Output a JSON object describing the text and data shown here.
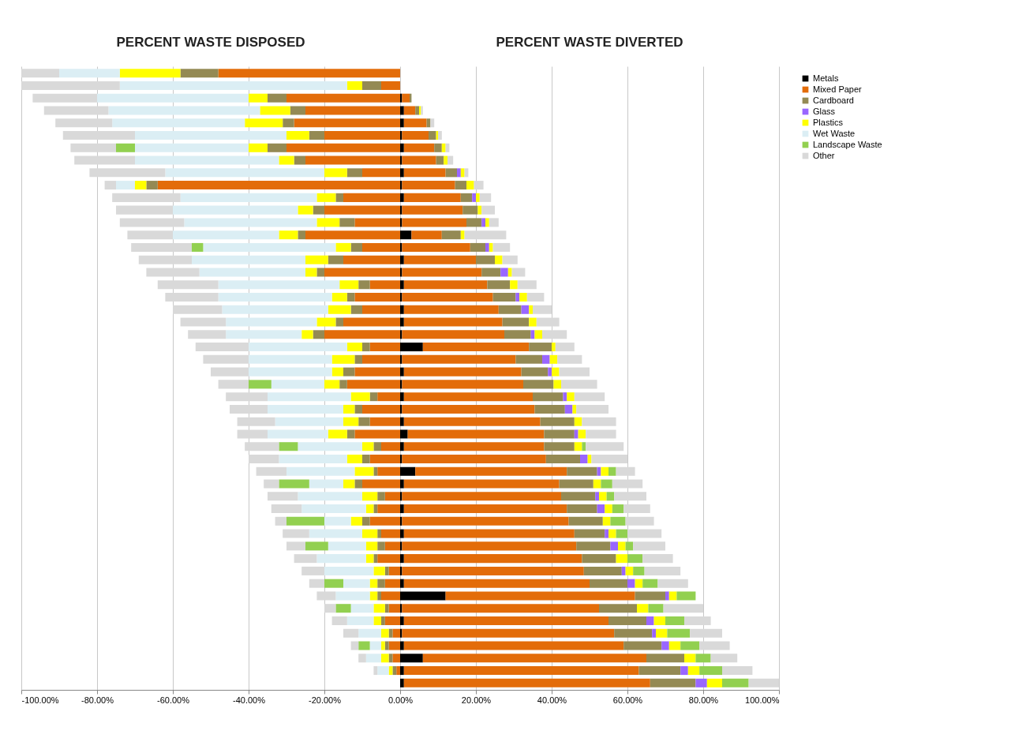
{
  "chart_data": {
    "type": "bar",
    "orientation": "horizontal",
    "stacked": true,
    "annotations": [
      "PERCENT WASTE DISPOSED",
      "PERCENT WASTE DIVERTED"
    ],
    "categories": [
      null,
      null,
      null,
      null,
      null,
      null,
      null,
      null,
      null,
      null,
      null,
      null,
      null,
      null,
      null,
      null,
      null,
      null,
      null,
      null,
      null,
      null,
      null,
      null,
      null,
      null,
      null,
      null,
      null,
      null,
      null,
      null,
      null,
      null,
      null,
      null,
      null,
      null,
      null,
      null,
      null,
      null,
      null,
      null,
      null,
      null,
      null,
      null,
      null,
      null
    ],
    "xlim": [
      -100,
      100
    ],
    "xticks": [
      {
        "value": -100,
        "label": "-100.00%"
      },
      {
        "value": -80,
        "label": "-80.00%"
      },
      {
        "value": -60,
        "label": "-60.00%"
      },
      {
        "value": -40,
        "label": "-40.00%"
      },
      {
        "value": -20,
        "label": "-20.00%"
      },
      {
        "value": 0,
        "label": "0.00%"
      },
      {
        "value": 20,
        "label": "20.00%"
      },
      {
        "value": 40,
        "label": "40.00%"
      },
      {
        "value": 60,
        "label": "60.00%"
      },
      {
        "value": 80,
        "label": "80.00%"
      },
      {
        "value": 100,
        "label": "100.00%"
      }
    ],
    "grid": "x",
    "legend": "right",
    "series": [
      {
        "name": "Metals",
        "color": "#000000",
        "values": [
          null,
          null,
          0.5,
          1,
          1,
          0.5,
          1,
          0.5,
          1,
          0.5,
          1,
          0.5,
          0.5,
          3,
          0.5,
          1,
          0.5,
          1,
          0.5,
          1,
          1,
          0.5,
          6,
          0.5,
          1,
          0.5,
          1,
          0.5,
          1,
          2,
          1,
          0.5,
          4,
          1,
          0.5,
          1,
          0.5,
          1,
          0.5,
          1,
          0.5,
          1,
          12,
          0.5,
          1,
          0.5,
          1,
          6,
          1,
          1
        ]
      },
      {
        "name": "Mixed Paper",
        "color": "#e36c09",
        "values": [
          null,
          null,
          2,
          3,
          6,
          7,
          8,
          9,
          11,
          14,
          15,
          16,
          17,
          8,
          18,
          19,
          21,
          22,
          24,
          25,
          26,
          27,
          28,
          30,
          31,
          32,
          34,
          35,
          36,
          36,
          37,
          38,
          40,
          41,
          42,
          43,
          44,
          45,
          46,
          47,
          48,
          49,
          50,
          52,
          54,
          56,
          58,
          59,
          62,
          65
        ]
      },
      {
        "name": "Cardboard",
        "color": "#948a54",
        "values": [
          null,
          null,
          0.5,
          1,
          1,
          2,
          2,
          2,
          3,
          3,
          3,
          4,
          4,
          5,
          4,
          5,
          5,
          6,
          6,
          6,
          7,
          7,
          6,
          7,
          7,
          8,
          8,
          8,
          9,
          8,
          8,
          9,
          8,
          9,
          9,
          8,
          9,
          8,
          9,
          9,
          10,
          10,
          8,
          10,
          10,
          10,
          10,
          10,
          11,
          12
        ]
      },
      {
        "name": "Glass",
        "color": "#9966ff",
        "values": [
          null,
          null,
          null,
          null,
          null,
          null,
          null,
          null,
          1,
          null,
          1,
          null,
          1,
          null,
          1,
          null,
          2,
          null,
          1,
          2,
          null,
          1,
          null,
          2,
          1,
          null,
          1,
          2,
          null,
          1,
          null,
          2,
          1,
          null,
          1,
          2,
          null,
          1,
          2,
          null,
          1,
          2,
          1,
          null,
          2,
          1,
          2,
          null,
          2,
          3
        ]
      },
      {
        "name": "Plastics",
        "color": "#ffff00",
        "values": [
          null,
          null,
          null,
          0.5,
          null,
          0.5,
          1,
          1,
          1,
          2,
          1,
          1,
          1,
          1,
          1,
          2,
          1,
          2,
          2,
          1,
          2,
          2,
          1,
          2,
          2,
          2,
          2,
          1,
          2,
          2,
          2,
          1,
          2,
          2,
          2,
          2,
          2,
          2,
          2,
          3,
          2,
          2,
          2,
          3,
          3,
          3,
          3,
          3,
          3,
          4
        ]
      },
      {
        "name": "Wet Waste",
        "color": "#dbeef4",
        "values": [
          null,
          null,
          null,
          null,
          null,
          null,
          null,
          null,
          null,
          null,
          null,
          null,
          null,
          null,
          null,
          null,
          null,
          null,
          null,
          null,
          null,
          null,
          null,
          null,
          null,
          null,
          null,
          null,
          null,
          null,
          null,
          null,
          null,
          null,
          null,
          null,
          null,
          null,
          null,
          null,
          null,
          null,
          null,
          null,
          null,
          null,
          null,
          null,
          null,
          null
        ]
      },
      {
        "name": "Landscape Waste",
        "color": "#92d050",
        "values": [
          null,
          null,
          null,
          null,
          null,
          null,
          null,
          null,
          null,
          null,
          null,
          null,
          null,
          null,
          null,
          null,
          null,
          null,
          null,
          null,
          null,
          null,
          null,
          null,
          null,
          null,
          null,
          null,
          null,
          null,
          1,
          null,
          2,
          3,
          2,
          3,
          4,
          3,
          2,
          4,
          3,
          4,
          5,
          4,
          5,
          6,
          5,
          4,
          6,
          7
        ]
      },
      {
        "name": "Other",
        "color": "#d9d9d9",
        "values": [
          null,
          null,
          null,
          0.5,
          1,
          1,
          1,
          1.5,
          1,
          2.5,
          3,
          3.5,
          2.5,
          11,
          4.5,
          4,
          3.5,
          5,
          4.5,
          5,
          6,
          6.5,
          5,
          6.5,
          8,
          9.5,
          8,
          8.5,
          9,
          8,
          10,
          9.5,
          5,
          8,
          8.5,
          7,
          7.5,
          9,
          8.5,
          8,
          9.5,
          8,
          null,
          10.5,
          7,
          8.5,
          8,
          7,
          8,
          8
        ]
      },
      {
        "color": "#e36c09",
        "values": [
          -48,
          -5,
          -30,
          -25,
          -28,
          -20,
          -30,
          -25,
          -10,
          -64,
          -15,
          -20,
          -12,
          -25,
          -10,
          -15,
          -20,
          -8,
          -12,
          -10,
          -15,
          -20,
          -8,
          -10,
          -12,
          -14,
          -6,
          -10,
          -8,
          -12,
          -5,
          -8,
          -6,
          -10,
          -4,
          -6,
          -8,
          -5,
          -4,
          -6,
          -3,
          -4,
          -5,
          -3,
          -4,
          -2,
          -3,
          -2,
          -1,
          null
        ]
      },
      {
        "color": "#948a54",
        "values": [
          -10,
          -5,
          -5,
          -4,
          -3,
          -4,
          -5,
          -3,
          -4,
          -3,
          -2,
          -3,
          -4,
          -2,
          -3,
          -4,
          -2,
          -3,
          -2,
          -3,
          -2,
          -3,
          -2,
          -2,
          -3,
          -2,
          -2,
          -2,
          -3,
          -2,
          -2,
          -2,
          -1,
          -2,
          -2,
          -1,
          -2,
          -1,
          -2,
          -1,
          -1,
          -2,
          -1,
          -1,
          -1,
          -1,
          -1,
          -1,
          -1,
          null
        ]
      },
      {
        "color": "#ffff00",
        "values": [
          -16,
          -4,
          -5,
          -8,
          -10,
          -6,
          -5,
          -4,
          -6,
          -3,
          -5,
          -4,
          -6,
          -5,
          -4,
          -6,
          -3,
          -5,
          -4,
          -6,
          -5,
          -3,
          -4,
          -6,
          -3,
          -4,
          -5,
          -3,
          -4,
          -5,
          -3,
          -4,
          -5,
          -3,
          -4,
          -2,
          -3,
          -4,
          -3,
          -2,
          -3,
          -2,
          -2,
          -3,
          -2,
          -2,
          -1,
          -2,
          -1,
          null
        ]
      },
      {
        "color": "#dbeef4",
        "values": [
          -16,
          -60,
          -40,
          -40,
          -35,
          -40,
          -30,
          -38,
          -42,
          -5,
          -36,
          -33,
          -35,
          -28,
          -35,
          -30,
          -28,
          -32,
          -30,
          -28,
          -24,
          -20,
          -26,
          -22,
          -22,
          -14,
          -22,
          -20,
          -18,
          -16,
          -17,
          -18,
          -18,
          -9,
          -17,
          -17,
          -7,
          -14,
          -10,
          -13,
          -13,
          -7,
          -9,
          -6,
          -7,
          -6,
          -3,
          -4,
          -3,
          null
        ]
      },
      {
        "color": "#92d050",
        "values": [
          null,
          null,
          null,
          null,
          null,
          null,
          -5,
          null,
          null,
          null,
          null,
          null,
          null,
          null,
          -3,
          null,
          null,
          null,
          null,
          null,
          null,
          null,
          null,
          null,
          null,
          -6,
          null,
          null,
          null,
          null,
          -5,
          null,
          null,
          -8,
          null,
          null,
          -10,
          null,
          -6,
          null,
          null,
          -5,
          null,
          -4,
          null,
          null,
          -3,
          null,
          null,
          null
        ]
      },
      {
        "color": "#d9d9d9",
        "values": [
          -10,
          -26,
          -17,
          -17,
          -15,
          -19,
          -12,
          -16,
          -20,
          -3,
          -18,
          -15,
          -17,
          -12,
          -16,
          -14,
          -14,
          -16,
          -14,
          -13,
          -12,
          -10,
          -14,
          -12,
          -10,
          -8,
          -11,
          -10,
          -10,
          -8,
          -9,
          -8,
          -8,
          -4,
          -8,
          -8,
          -3,
          -7,
          -5,
          -6,
          -6,
          -4,
          -5,
          -3,
          -4,
          -4,
          -2,
          -2,
          -1,
          null
        ]
      }
    ]
  }
}
